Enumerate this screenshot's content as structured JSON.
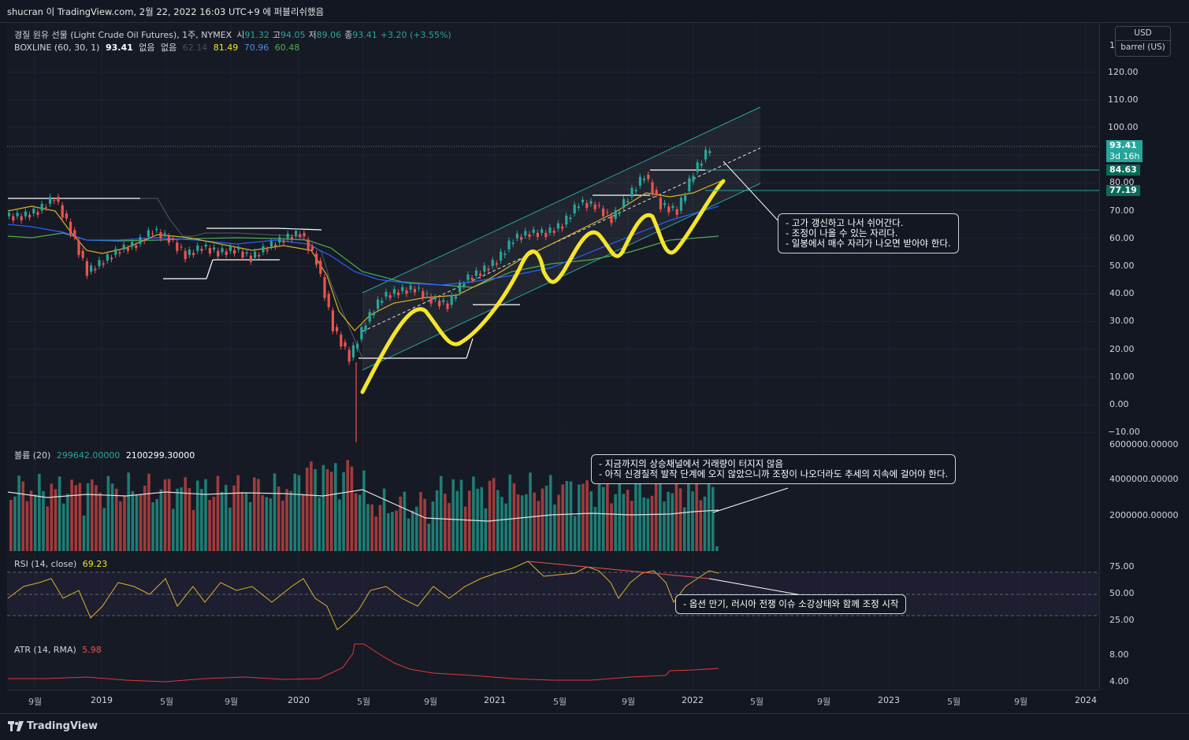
{
  "header": {
    "text": "shucran 이 TradingView.com, 2월 22, 2022 16:03 UTC+9 에 퍼블리쉬했음"
  },
  "legend": {
    "symbol": "경질 원유 선물 (Light Crude Oil Futures), 1주, NYMEX",
    "o_label": "시",
    "o": "91.32",
    "h_label": "고",
    "h": "94.05",
    "l_label": "저",
    "l": "89.06",
    "c_label": "종",
    "c": "93.41",
    "chg": "+3.20 (+3.55%)",
    "boxline": "BOXLINE (60, 30, 1)",
    "box_v1": "93.41",
    "box_v2": "없음",
    "box_v3": "없음",
    "box_v4": "62.14",
    "box_v5": "81.49",
    "box_v6": "70.96",
    "box_v7": "60.48",
    "volume": "볼륨 (20)",
    "vol_v1": "299642.00000",
    "vol_v2": "2100299.30000",
    "rsi": "RSI (14, close)",
    "rsi_v": "69.23",
    "atr": "ATR (14, RMA)",
    "atr_v": "5.98"
  },
  "unit": {
    "currency": "USD",
    "unit": "barrel (US)"
  },
  "scale_top_char": "1",
  "price_axis": [
    "120.00",
    "110.00",
    "100.00",
    "90.00",
    "80.00",
    "70.00",
    "60.00",
    "50.00",
    "40.00",
    "30.00",
    "20.00",
    "10.00",
    "0.00",
    "−10.00"
  ],
  "badges": {
    "last": "93.41",
    "countdown": "3d 16h",
    "line1": "84.63",
    "line2": "77.19"
  },
  "volume_axis": [
    "6000000.00000",
    "4000000.00000",
    "2000000.00000"
  ],
  "rsi_axis": [
    "75.00",
    "50.00",
    "25.00"
  ],
  "atr_axis": [
    "8.00",
    "4.00"
  ],
  "time_axis": [
    "9월",
    "2019",
    "5월",
    "9월",
    "2020",
    "5월",
    "9월",
    "2021",
    "5월",
    "9월",
    "2022",
    "5월",
    "9월",
    "2023",
    "5월",
    "9월",
    "2024"
  ],
  "notes": {
    "price": "- 고가 갱신하고 나서 쉬어간다.\n- 조정이 나올 수 있는 자리다.\n- 일봉에서 매수 자리가 나오면 받아야 한다.",
    "volume": "- 지금까지의 상승채널에서 거래량이 터지지 않음\n- 아직 신경질적 발작 단계에 오지 않았으니까 조정이 나오더라도 추세의 지속에 걸어야 한다.",
    "rsi": "- 옵션 만기, 러시아 전쟁 이슈 소강상태와 함께 조정 시작"
  },
  "footer": {
    "brand": "TradingView"
  },
  "colors": {
    "up": "#26a69a",
    "down": "#ef5350",
    "yellow": "#f5e52a",
    "ma_blue": "#2962ff",
    "ma_green": "#4caf50",
    "channel": "#26a69a"
  },
  "chart_data": {
    "type": "candlestick",
    "title": "경질 원유 선물 (Light Crude Oil Futures), 1주, NYMEX",
    "ohlc_last": {
      "open": 91.32,
      "high": 94.05,
      "low": 89.06,
      "close": 93.41,
      "change": 3.2,
      "change_pct": 3.55
    },
    "close_series": {
      "x": [
        "2018-08",
        "2018-09",
        "2018-10",
        "2018-11",
        "2018-12",
        "2019-01",
        "2019-02",
        "2019-03",
        "2019-04",
        "2019-05",
        "2019-06",
        "2019-07",
        "2019-08",
        "2019-09",
        "2019-10",
        "2019-11",
        "2019-12",
        "2020-01",
        "2020-02",
        "2020-03",
        "2020-04",
        "2020-05",
        "2020-06",
        "2020-07",
        "2020-08",
        "2020-09",
        "2020-10",
        "2020-11",
        "2020-12",
        "2021-01",
        "2021-02",
        "2021-03",
        "2021-04",
        "2021-05",
        "2021-06",
        "2021-07",
        "2021-08",
        "2021-09",
        "2021-10",
        "2021-11",
        "2021-12",
        "2022-01",
        "2022-02"
      ],
      "values": [
        68,
        70,
        75,
        63,
        48,
        52,
        56,
        58,
        63,
        60,
        54,
        57,
        55,
        56,
        53,
        57,
        60,
        62,
        52,
        28,
        17,
        30,
        39,
        41,
        42,
        38,
        36,
        45,
        48,
        52,
        60,
        62,
        62,
        65,
        73,
        72,
        67,
        75,
        83,
        72,
        70,
        84,
        93
      ]
    },
    "boxline": {
      "values": [
        93.41,
        81.49,
        70.96,
        60.48
      ]
    },
    "horizontal_lines": [
      84.63,
      77.19
    ],
    "volume": {
      "values": [
        299642,
        2100299.3
      ]
    },
    "rsi": {
      "value": 69.23,
      "levels": [
        70,
        50,
        30
      ]
    },
    "atr": {
      "value": 5.98
    },
    "ylim": [
      -10,
      125
    ]
  }
}
